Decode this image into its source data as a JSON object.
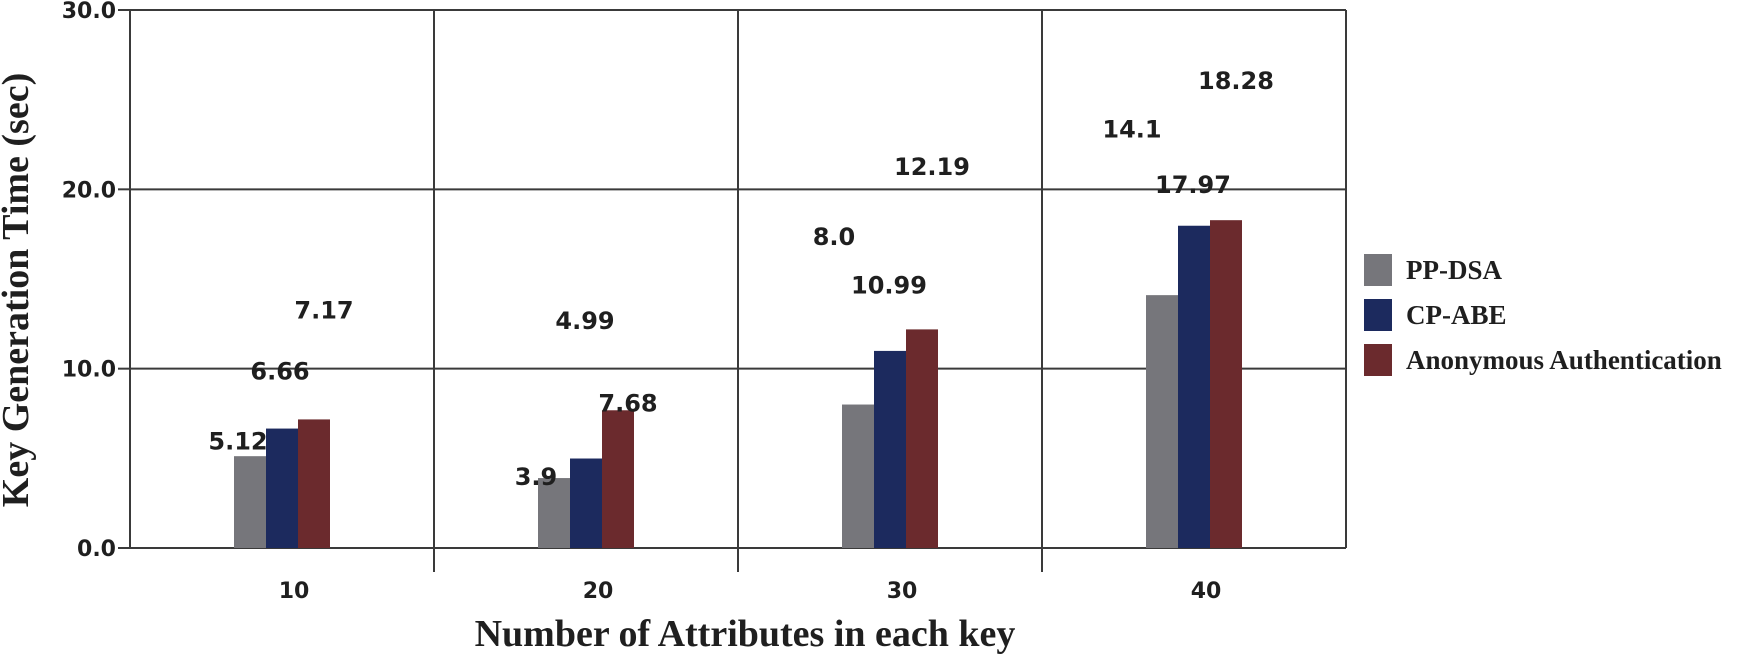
{
  "chart_data": {
    "type": "bar",
    "title": "",
    "xlabel": "Number of Attributes in each key",
    "ylabel": "Key Generation Time (sec)",
    "categories": [
      "10",
      "20",
      "30",
      "40"
    ],
    "ylim": [
      0,
      30
    ],
    "yticks": [
      "0.0",
      "10.0",
      "20.0",
      "30.0"
    ],
    "grid": true,
    "legend_position": "right",
    "series": [
      {
        "name": "PP-DSA",
        "color": "#76767b",
        "values": [
          5.12,
          3.9,
          8.0,
          14.1
        ],
        "labels": [
          "5.12",
          "3.9",
          "8.0",
          "14.1"
        ]
      },
      {
        "name": "CP-ABE",
        "color": "#1c2a5e",
        "values": [
          6.66,
          4.99,
          10.99,
          17.97
        ],
        "labels": [
          "6.66",
          "4.99",
          "10.99",
          "17.97"
        ]
      },
      {
        "name": "Anonymous Authentication",
        "color": "#6b2a2d",
        "values": [
          7.17,
          7.68,
          12.19,
          18.28
        ],
        "labels": [
          "7.17",
          "7.68",
          "12.19",
          "18.28"
        ]
      }
    ]
  }
}
